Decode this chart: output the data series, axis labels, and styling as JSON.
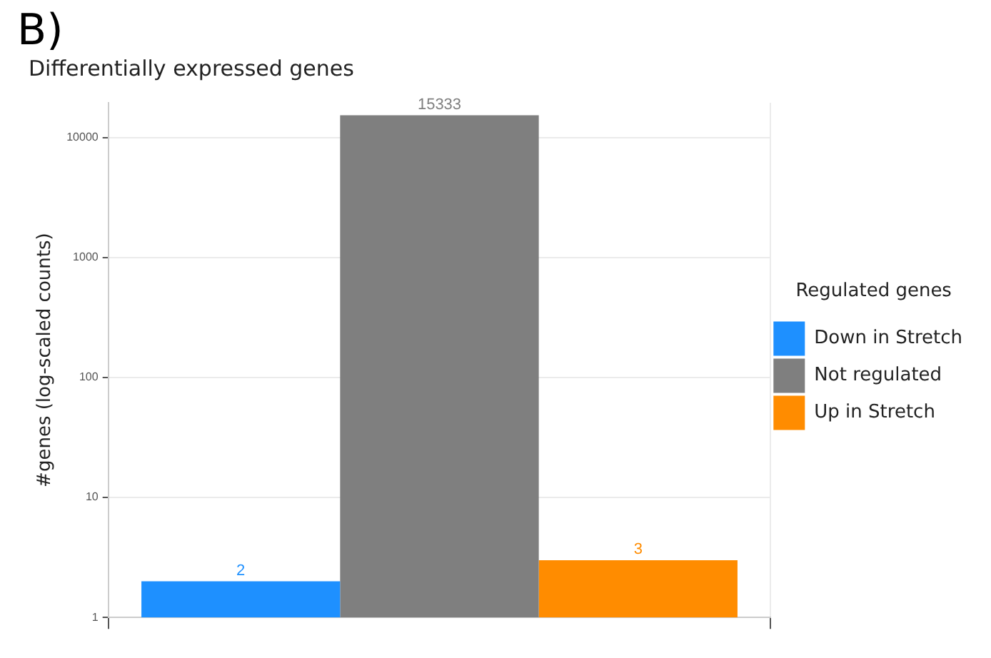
{
  "chart_data": {
    "type": "bar",
    "title": "Differentially expressed genes",
    "ylabel": "#genes (log-scaled counts)",
    "legend_title": "Regulated genes",
    "annotations": [
      "B)"
    ],
    "categories": [
      null
    ],
    "series": [
      {
        "name": "Down in Stretch",
        "color": "#1e90ff",
        "values": [
          2
        ]
      },
      {
        "name": "Not regulated",
        "color": "#7f7f7f",
        "values": [
          15333
        ]
      },
      {
        "name": "Up in Stretch",
        "color": "#ff8c00",
        "values": [
          3
        ]
      }
    ],
    "log": "y",
    "ylim": [
      1,
      19500
    ],
    "yticks": [
      1,
      10,
      100,
      1000,
      10000
    ],
    "grid": true,
    "legend": "right",
    "data_labels": true
  }
}
